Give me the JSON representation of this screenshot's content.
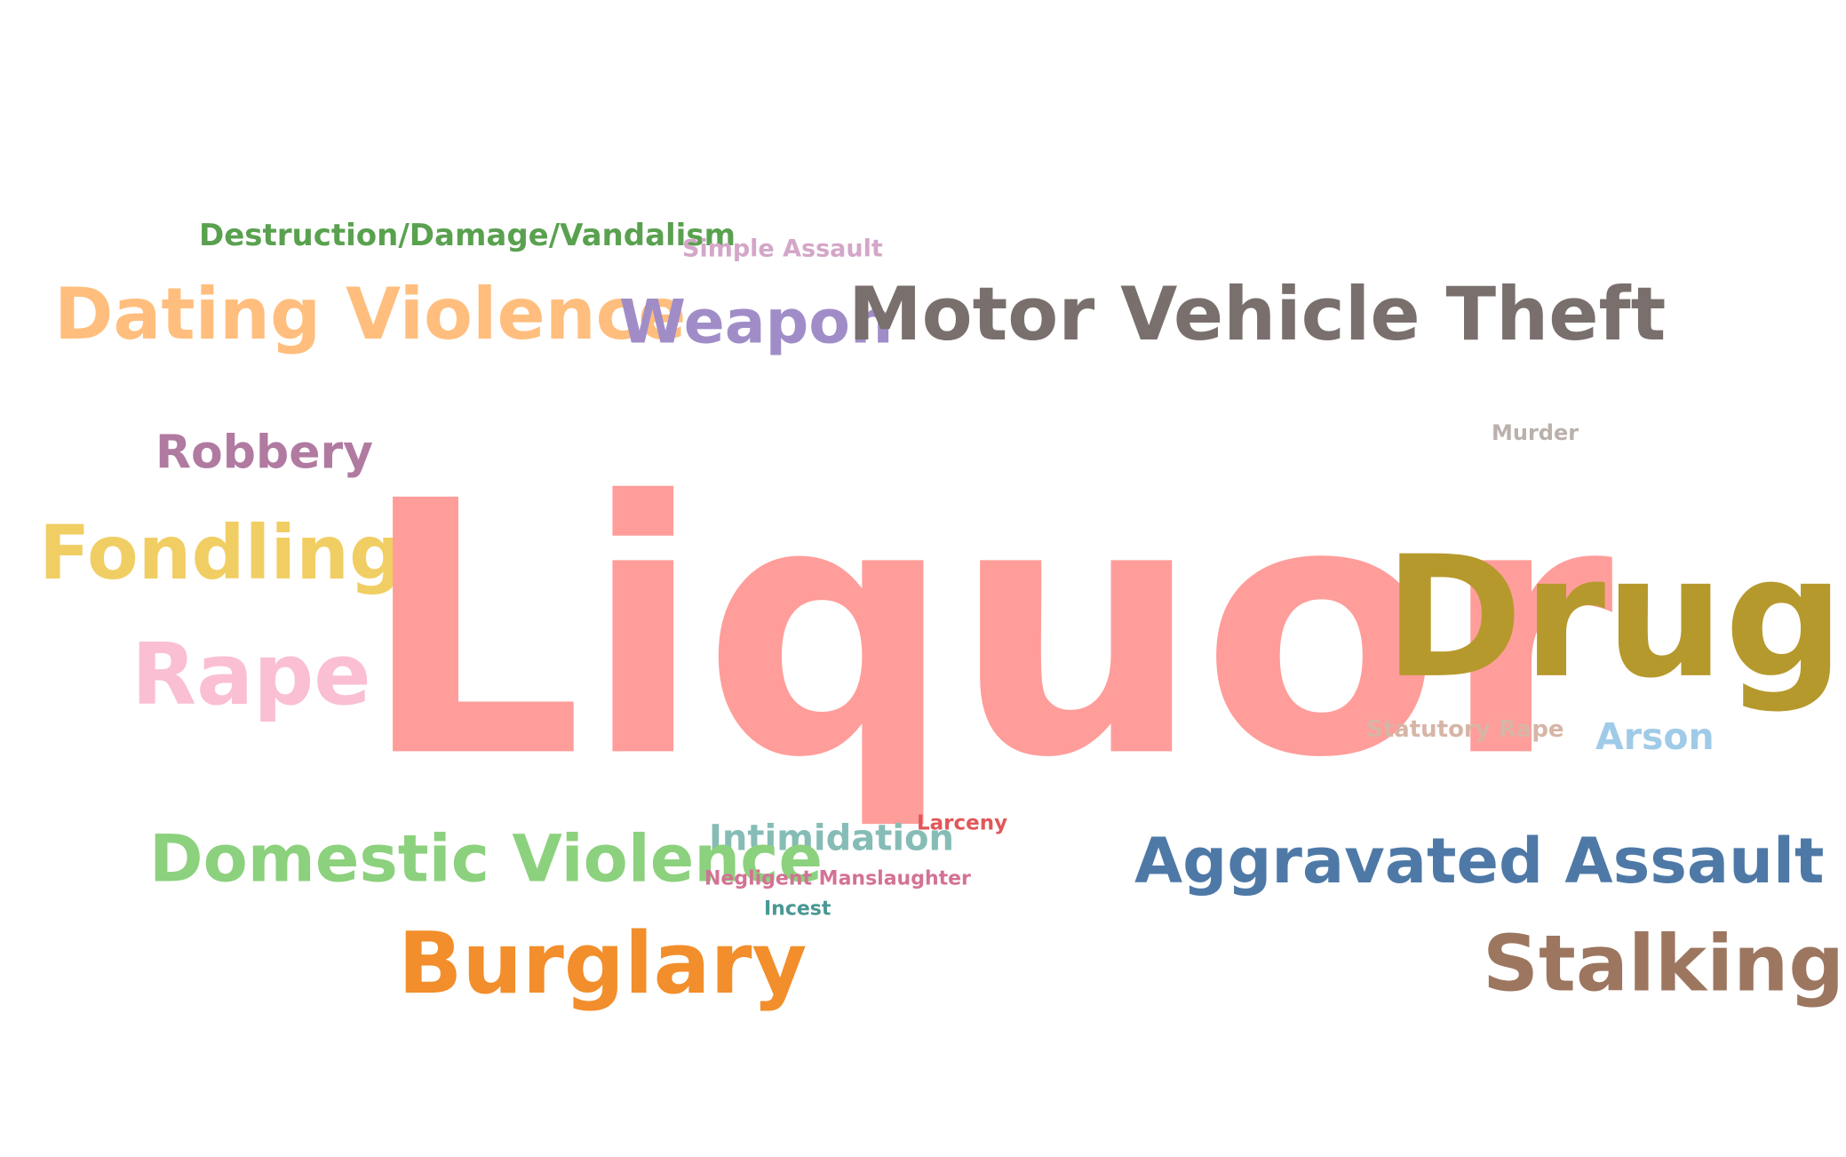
{
  "words": [
    {
      "text": "Destruction/Damage/Vandalism",
      "color": "#59a14f"
    },
    {
      "text": "Simple Assault",
      "color": "#d4a6c8"
    },
    {
      "text": "Dating Violence",
      "color": "#ffbe7d"
    },
    {
      "text": "Weapon",
      "color": "#a08dc8"
    },
    {
      "text": "Motor Vehicle Theft",
      "color": "#79706e"
    },
    {
      "text": "Robbery",
      "color": "#b07aa1"
    },
    {
      "text": "Murder",
      "color": "#bab0ac"
    },
    {
      "text": "Fondling",
      "color": "#f1ce63"
    },
    {
      "text": "Liquor",
      "color": "#ff9d9a"
    },
    {
      "text": "Drug",
      "color": "#b6992d"
    },
    {
      "text": "Rape",
      "color": "#fabfd2"
    },
    {
      "text": "Statutory Rape",
      "color": "#d7b5a6"
    },
    {
      "text": "Arson",
      "color": "#a0cbe8"
    },
    {
      "text": "Larceny",
      "color": "#e15759"
    },
    {
      "text": "Intimidation",
      "color": "#86bcb6"
    },
    {
      "text": "Domestic Violence",
      "color": "#8cd17d"
    },
    {
      "text": "Aggravated Assault",
      "color": "#4e79a7"
    },
    {
      "text": "Negligent Manslaughter",
      "color": "#d37295"
    },
    {
      "text": "Incest",
      "color": "#499894"
    },
    {
      "text": "Burglary",
      "color": "#f28e2b"
    },
    {
      "text": "Stalking",
      "color": "#9d7660"
    }
  ]
}
